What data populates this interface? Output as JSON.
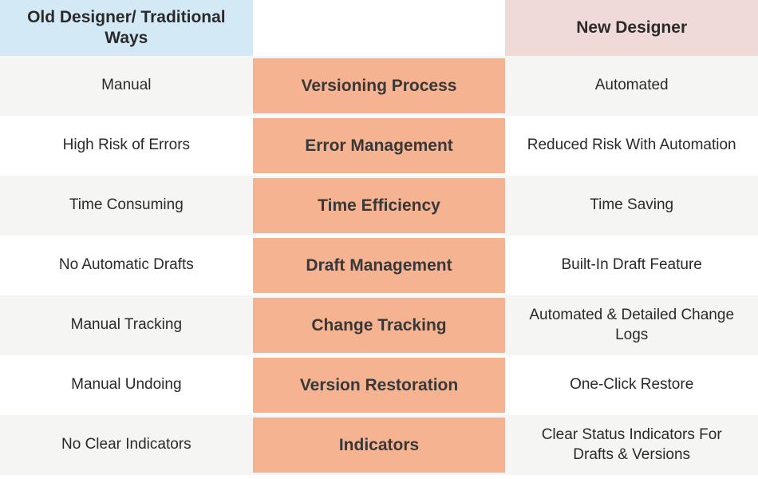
{
  "table": {
    "type": "comparison-table",
    "columns": 3,
    "column_widths": [
      "33.33%",
      "33.33%",
      "33.33%"
    ],
    "headers": {
      "left": "Old Designer/ Traditional Ways",
      "center": "",
      "right": "New Designer"
    },
    "header_colors": {
      "left_bg": "#d3e9f6",
      "center_bg": "#ffffff",
      "right_bg": "#f0dad8"
    },
    "rows": [
      {
        "old": "Manual",
        "category": "Versioning Process",
        "new": "Automated"
      },
      {
        "old": "High Risk of Errors",
        "category": "Error Management",
        "new": "Reduced Risk With Automation"
      },
      {
        "old": "Time Consuming",
        "category": "Time Efficiency",
        "new": "Time Saving"
      },
      {
        "old": "No Automatic Drafts",
        "category": "Draft Management",
        "new": "Built-In Draft Feature"
      },
      {
        "old": "Manual Tracking",
        "category": "Change Tracking",
        "new": "Automated & Detailed Change Logs"
      },
      {
        "old": "Manual Undoing",
        "category": "Version Restoration",
        "new": "One-Click Restore"
      },
      {
        "old": "No Clear Indicators",
        "category": "Indicators",
        "new": "Clear Status Indicators For Drafts & Versions"
      }
    ],
    "styling": {
      "category_cell_bg": "#f5b391",
      "row_even_bg": "#f5f5f3",
      "row_odd_bg": "#ffffff",
      "text_color": "#2a2a2a",
      "category_text_color": "#383838",
      "header_fontsize": 21,
      "header_fontweight": 700,
      "category_fontsize": 21,
      "category_fontweight": 700,
      "data_fontsize": 19,
      "font_family": "Segoe UI, sans-serif",
      "header_row_height": 70,
      "data_row_height": 75
    }
  }
}
